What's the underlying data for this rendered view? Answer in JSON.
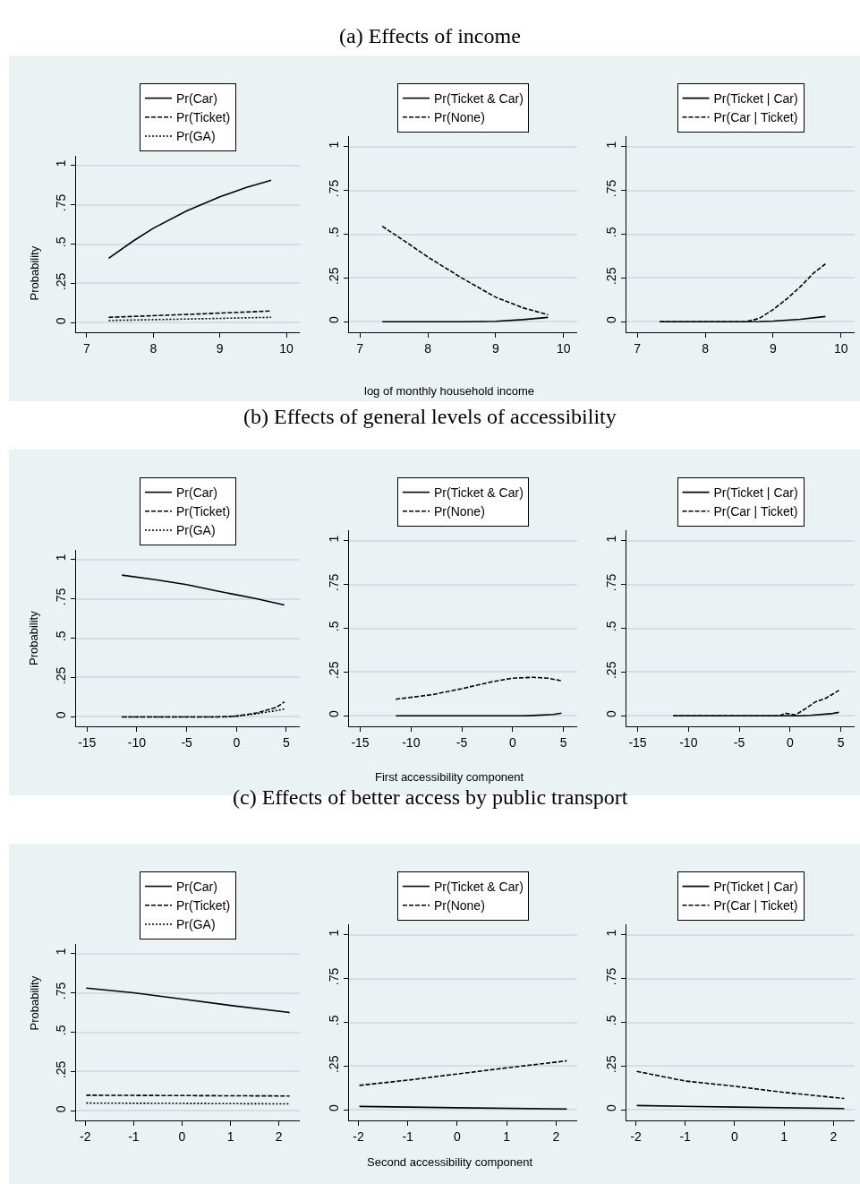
{
  "chart_data": [
    {
      "type": "line",
      "ylabel": "Probability",
      "xlim": [
        6.84,
        10.2
      ],
      "xticks": [
        7,
        8,
        9,
        10
      ],
      "ylim": [
        -0.06,
        1.06
      ],
      "yticks": [
        0,
        {
          "value": 0.25,
          "label": ".25"
        },
        {
          "value": 0.5,
          "label": ".5"
        },
        {
          "value": 0.75,
          "label": ".75"
        },
        1
      ],
      "grid": "y",
      "legend": "top",
      "series": [
        {
          "name": "Pr(Car)",
          "color": "#000000",
          "line_style": "solid",
          "x": [
            7.33,
            7.7,
            8.0,
            8.5,
            9.0,
            9.4,
            9.77
          ],
          "values": [
            0.41,
            0.52,
            0.6,
            0.71,
            0.8,
            0.86,
            0.905
          ]
        },
        {
          "name": "Pr(Ticket)",
          "color": "#000000",
          "line_style": "dashed",
          "x": [
            7.33,
            8.5,
            9.77
          ],
          "values": [
            0.035,
            0.053,
            0.075
          ]
        },
        {
          "name": "Pr(GA)",
          "color": "#000000",
          "line_style": "dotted",
          "x": [
            7.33,
            8.5,
            9.77
          ],
          "values": [
            0.015,
            0.024,
            0.035
          ]
        }
      ]
    },
    {
      "type": "line",
      "title": "(a) Effects of income",
      "xlabel": "log of monthly household income",
      "xlim": [
        6.84,
        10.2
      ],
      "xticks": [
        7,
        8,
        9,
        10
      ],
      "ylim": [
        -0.06,
        1.06
      ],
      "yticks": [
        0,
        {
          "value": 0.25,
          "label": ".25"
        },
        {
          "value": 0.5,
          "label": ".5"
        },
        {
          "value": 0.75,
          "label": ".75"
        },
        1
      ],
      "grid": "y",
      "legend": "top",
      "series": [
        {
          "name": "Pr(Ticket & Car)",
          "color": "#000000",
          "line_style": "solid",
          "x": [
            7.33,
            8.5,
            8.8,
            9.0,
            9.4,
            9.77
          ],
          "values": [
            0,
            0,
            0.001,
            0.003,
            0.012,
            0.025
          ]
        },
        {
          "name": "Pr(None)",
          "color": "#000000",
          "line_style": "dashed",
          "x": [
            7.33,
            7.7,
            8.0,
            8.5,
            9.0,
            9.4,
            9.77
          ],
          "values": [
            0.545,
            0.45,
            0.37,
            0.25,
            0.14,
            0.08,
            0.04
          ]
        }
      ]
    },
    {
      "type": "line",
      "xlim": [
        6.84,
        10.2
      ],
      "xticks": [
        7,
        8,
        9,
        10
      ],
      "ylim": [
        -0.06,
        1.06
      ],
      "yticks": [
        0,
        {
          "value": 0.25,
          "label": ".25"
        },
        {
          "value": 0.5,
          "label": ".5"
        },
        {
          "value": 0.75,
          "label": ".75"
        },
        1
      ],
      "grid": "y",
      "legend": "top",
      "series": [
        {
          "name": "Pr(Ticket | Car)",
          "color": "#000000",
          "line_style": "solid",
          "x": [
            7.33,
            8.5,
            8.8,
            9.0,
            9.4,
            9.77
          ],
          "values": [
            0,
            0,
            0.001,
            0.004,
            0.014,
            0.03
          ]
        },
        {
          "name": "Pr(Car | Ticket)",
          "color": "#000000",
          "line_style": "dashed",
          "x": [
            7.33,
            8.6,
            8.8,
            9.0,
            9.2,
            9.4,
            9.6,
            9.77
          ],
          "values": [
            0,
            0,
            0.02,
            0.07,
            0.13,
            0.2,
            0.28,
            0.33
          ]
        }
      ]
    },
    {
      "type": "line",
      "ylabel": "Probability",
      "xlim": [
        -16.1,
        6.35
      ],
      "xticks": [
        -15,
        -10,
        -5,
        0,
        5
      ],
      "ylim": [
        -0.06,
        1.06
      ],
      "yticks": [
        0,
        {
          "value": 0.25,
          "label": ".25"
        },
        {
          "value": 0.5,
          "label": ".5"
        },
        {
          "value": 0.75,
          "label": ".75"
        },
        1
      ],
      "grid": "y",
      "legend": "top",
      "series": [
        {
          "name": "Pr(Car)",
          "color": "#000000",
          "line_style": "solid",
          "x": [
            -11.5,
            -8,
            -5,
            -2,
            0,
            2,
            4.8
          ],
          "values": [
            0.9,
            0.87,
            0.84,
            0.8,
            0.775,
            0.75,
            0.71
          ]
        },
        {
          "name": "Pr(Ticket)",
          "color": "#000000",
          "line_style": "dashed",
          "x": [
            -11.5,
            -2,
            0,
            2,
            4,
            4.8
          ],
          "values": [
            0,
            0,
            0.005,
            0.025,
            0.06,
            0.095
          ]
        },
        {
          "name": "Pr(GA)",
          "color": "#000000",
          "line_style": "dotted",
          "x": [
            -11.5,
            -1,
            0,
            2,
            4,
            4.8
          ],
          "values": [
            0,
            0,
            0.005,
            0.02,
            0.04,
            0.05
          ]
        }
      ]
    },
    {
      "type": "line",
      "title": "(b) Effects of general levels of accessibility",
      "xlabel": "First accessibility component",
      "xlim": [
        -16.1,
        6.35
      ],
      "xticks": [
        -15,
        -10,
        -5,
        0,
        5
      ],
      "ylim": [
        -0.06,
        1.06
      ],
      "yticks": [
        0,
        {
          "value": 0.25,
          "label": ".25"
        },
        {
          "value": 0.5,
          "label": ".5"
        },
        {
          "value": 0.75,
          "label": ".75"
        },
        1
      ],
      "grid": "y",
      "legend": "top",
      "series": [
        {
          "name": "Pr(Ticket & Car)",
          "color": "#000000",
          "line_style": "solid",
          "x": [
            -11.5,
            1,
            2,
            4,
            4.8
          ],
          "values": [
            0,
            0,
            0.002,
            0.008,
            0.015
          ]
        },
        {
          "name": "Pr(None)",
          "color": "#000000",
          "line_style": "dashed",
          "x": [
            -11.5,
            -8,
            -5,
            -2,
            0,
            2,
            3.5,
            4.8
          ],
          "values": [
            0.095,
            0.12,
            0.155,
            0.195,
            0.215,
            0.22,
            0.215,
            0.2
          ]
        }
      ]
    },
    {
      "type": "line",
      "xlim": [
        -16.1,
        6.35
      ],
      "xticks": [
        -15,
        -10,
        -5,
        0,
        5
      ],
      "ylim": [
        -0.06,
        1.06
      ],
      "yticks": [
        0,
        {
          "value": 0.25,
          "label": ".25"
        },
        {
          "value": 0.5,
          "label": ".5"
        },
        {
          "value": 0.75,
          "label": ".75"
        },
        1
      ],
      "grid": "y",
      "legend": "top",
      "series": [
        {
          "name": "Pr(Ticket | Car)",
          "color": "#000000",
          "line_style": "solid",
          "x": [
            -11.5,
            1,
            2,
            4,
            4.8
          ],
          "values": [
            0,
            0,
            0.003,
            0.012,
            0.02
          ]
        },
        {
          "name": "Pr(Car | Ticket)",
          "color": "#000000",
          "line_style": "dashed",
          "x": [
            -11.5,
            -1,
            -0.5,
            0.5,
            1.5,
            2.5,
            3.5,
            4.8
          ],
          "values": [
            0,
            0,
            0.015,
            0.005,
            0.04,
            0.08,
            0.1,
            0.145
          ]
        }
      ]
    },
    {
      "type": "line",
      "ylabel": "Probability",
      "xlim": [
        -2.19,
        2.43
      ],
      "xticks": [
        -2,
        -1,
        0,
        1,
        2
      ],
      "ylim": [
        -0.06,
        1.06
      ],
      "yticks": [
        0,
        {
          "value": 0.25,
          "label": ".25"
        },
        {
          "value": 0.5,
          "label": ".5"
        },
        {
          "value": 0.75,
          "label": ".75"
        },
        1
      ],
      "grid": "y",
      "legend": "top",
      "series": [
        {
          "name": "Pr(Car)",
          "color": "#000000",
          "line_style": "solid",
          "x": [
            -1.98,
            -1,
            0,
            1,
            2.22
          ],
          "values": [
            0.78,
            0.75,
            0.71,
            0.67,
            0.625
          ]
        },
        {
          "name": "Pr(Ticket)",
          "color": "#000000",
          "line_style": "dashed",
          "x": [
            -1.98,
            2.22
          ],
          "values": [
            0.1,
            0.095
          ]
        },
        {
          "name": "Pr(GA)",
          "color": "#000000",
          "line_style": "dotted",
          "x": [
            -1.98,
            2.22
          ],
          "values": [
            0.05,
            0.045
          ]
        }
      ]
    },
    {
      "type": "line",
      "title": "(c) Effects of better access by public transport",
      "xlabel": "Second accessibility component",
      "xlim": [
        -2.19,
        2.43
      ],
      "xticks": [
        -2,
        -1,
        0,
        1,
        2
      ],
      "ylim": [
        -0.06,
        1.06
      ],
      "yticks": [
        0,
        {
          "value": 0.25,
          "label": ".25"
        },
        {
          "value": 0.5,
          "label": ".5"
        },
        {
          "value": 0.75,
          "label": ".75"
        },
        1
      ],
      "grid": "y",
      "legend": "top",
      "series": [
        {
          "name": "Pr(Ticket & Car)",
          "color": "#000000",
          "line_style": "solid",
          "x": [
            -1.98,
            0,
            2.22
          ],
          "values": [
            0.02,
            0.012,
            0.005
          ]
        },
        {
          "name": "Pr(None)",
          "color": "#000000",
          "line_style": "dashed",
          "x": [
            -1.98,
            -1,
            0,
            1,
            2.22
          ],
          "values": [
            0.14,
            0.17,
            0.205,
            0.24,
            0.28
          ]
        }
      ]
    },
    {
      "type": "line",
      "xlim": [
        -2.19,
        2.43
      ],
      "xticks": [
        -2,
        -1,
        0,
        1,
        2
      ],
      "ylim": [
        -0.06,
        1.06
      ],
      "yticks": [
        0,
        {
          "value": 0.25,
          "label": ".25"
        },
        {
          "value": 0.5,
          "label": ".5"
        },
        {
          "value": 0.75,
          "label": ".75"
        },
        1
      ],
      "grid": "y",
      "legend": "top",
      "series": [
        {
          "name": "Pr(Ticket | Car)",
          "color": "#000000",
          "line_style": "solid",
          "x": [
            -1.98,
            0,
            2.22
          ],
          "values": [
            0.025,
            0.016,
            0.008
          ]
        },
        {
          "name": "Pr(Car | Ticket)",
          "color": "#000000",
          "line_style": "dashed",
          "x": [
            -1.98,
            -1,
            0,
            1,
            2.22
          ],
          "values": [
            0.22,
            0.165,
            0.135,
            0.1,
            0.065
          ]
        }
      ]
    }
  ]
}
